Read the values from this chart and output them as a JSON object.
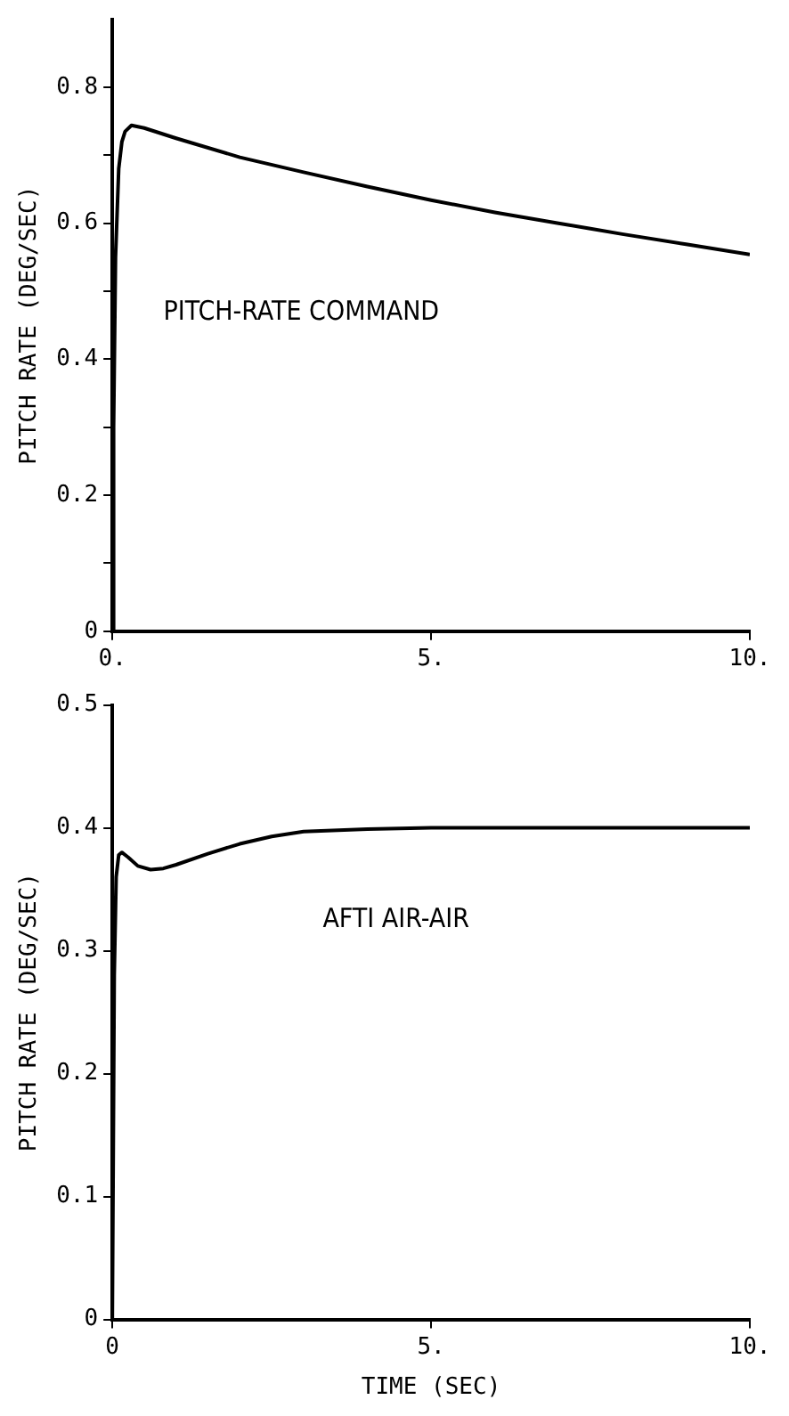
{
  "chart_data": [
    {
      "type": "line",
      "ylabel": "PITCH RATE (DEG/SEC)",
      "annotations": [
        "PITCH-RATE COMMAND"
      ],
      "x": [
        0,
        0.02,
        0.05,
        0.1,
        0.15,
        0.2,
        0.3,
        0.5,
        1,
        2,
        3,
        4,
        5,
        6,
        7,
        7.5,
        8,
        9,
        10
      ],
      "series": [
        {
          "color": "#000000",
          "values": [
            0,
            0.3,
            0.55,
            0.68,
            0.72,
            0.735,
            0.744,
            0.74,
            0.725,
            0.697,
            0.675,
            0.654,
            0.634,
            0.616,
            0.6,
            0.592,
            0.584,
            0.569,
            0.554
          ]
        }
      ],
      "xlim": [
        0,
        10
      ],
      "xticks": [
        {
          "value": 0,
          "label": "0."
        },
        {
          "value": 5,
          "label": "5."
        },
        {
          "value": 10,
          "label": "10."
        }
      ],
      "ylim": [
        0,
        0.9
      ],
      "yticks": [
        0,
        {
          "value": 0.1,
          "label": null
        },
        0.2,
        {
          "value": 0.3,
          "label": null
        },
        0.4,
        {
          "value": 0.5,
          "label": null
        },
        0.6,
        {
          "value": 0.7,
          "label": null
        },
        0.8
      ],
      "grid": false,
      "legend": false,
      "marker": "none",
      "line_style": "solid"
    },
    {
      "type": "line",
      "xlabel": "TIME (SEC)",
      "ylabel": "PITCH RATE (DEG/SEC)",
      "annotations": [
        "AFTI AIR-AIR"
      ],
      "x": [
        0,
        0.03,
        0.06,
        0.1,
        0.15,
        0.25,
        0.4,
        0.6,
        0.8,
        1,
        1.5,
        2,
        2.5,
        3,
        4,
        5,
        6,
        8,
        10
      ],
      "series": [
        {
          "color": "#000000",
          "values": [
            0,
            0.28,
            0.36,
            0.378,
            0.38,
            0.376,
            0.369,
            0.366,
            0.367,
            0.37,
            0.379,
            0.387,
            0.393,
            0.397,
            0.399,
            0.4,
            0.4,
            0.4,
            0.4
          ]
        }
      ],
      "xlim": [
        0,
        10
      ],
      "xticks": [
        0,
        {
          "value": 5,
          "label": "5."
        },
        {
          "value": 10,
          "label": "10."
        }
      ],
      "ylim": [
        0,
        0.5
      ],
      "yticks": [
        0,
        0.1,
        0.2,
        0.3,
        0.4,
        0.5
      ],
      "grid": false,
      "legend": false,
      "marker": "none",
      "line_style": "solid"
    }
  ]
}
